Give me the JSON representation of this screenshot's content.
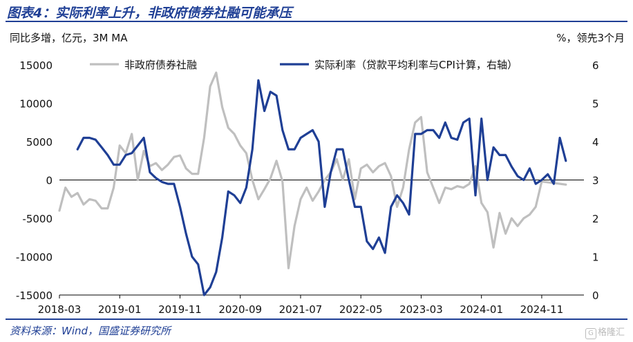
{
  "header": {
    "title": "图表4：实际利率上升，非政府债券社融可能承压",
    "left_note": "同比多增，亿元，3M MA",
    "right_note": "%，领先3个月"
  },
  "footer": {
    "source": "资料来源：Wind，国盛证券研究所",
    "watermark": "格隆汇"
  },
  "colors": {
    "brand": "#1F3F95",
    "series_gray": "#BFBFBF",
    "series_blue": "#1F3F95"
  },
  "chart_data": {
    "type": "line",
    "title": "实际利率上升，非政府债券社融可能承压",
    "x_start": "2018-03",
    "x_end": "2025-06",
    "x_ticks": [
      "2018-03",
      "2019-01",
      "2019-11",
      "2020-09",
      "2021-07",
      "2022-05",
      "2023-03",
      "2024-01",
      "2024-11"
    ],
    "left_axis": {
      "label": "同比多增，亿元，3M MA",
      "min": -15000,
      "max": 15000,
      "ticks": [
        "15000",
        "10000",
        "5000",
        "0",
        "-5000",
        "-10000",
        "-15000"
      ]
    },
    "right_axis": {
      "label": "%，领先3个月",
      "min": 0,
      "max": 6,
      "ticks": [
        "6",
        "5",
        "4",
        "3",
        "2",
        "1",
        "0"
      ]
    },
    "legend": [
      "非政府债券社融",
      "实际利率（贷款平均利率与CPI计算，右轴）"
    ],
    "series": [
      {
        "name": "非政府债券社融",
        "axis": "left",
        "start": "2018-03",
        "values": [
          -4000,
          -1000,
          -2200,
          -1700,
          -3200,
          -2500,
          -2700,
          -3700,
          -3700,
          -1000,
          4500,
          3500,
          6000,
          0,
          3800,
          1800,
          2200,
          1300,
          2000,
          3000,
          3200,
          1500,
          800,
          800,
          5500,
          12200,
          14000,
          9500,
          6800,
          6000,
          4500,
          3500,
          0,
          -2500,
          -1200,
          200,
          2500,
          -200,
          -11500,
          -6000,
          -2500,
          -1000,
          -2700,
          -1500,
          0,
          1000,
          2700,
          0,
          2700,
          -2500,
          1500,
          2000,
          1000,
          1800,
          2200,
          500,
          -3500,
          -1000,
          4000,
          7500,
          8200,
          1000,
          -1000,
          -3000,
          -1000,
          -1200,
          -800,
          -1000,
          -500,
          1800,
          -3000,
          -4200,
          -8800,
          -4300,
          -7000,
          -5000,
          -6000,
          -5000,
          -4500,
          -3500,
          -200,
          -300,
          -400,
          -500,
          -600
        ]
      },
      {
        "name": "实际利率（贷款平均利率与CPI计算，右轴）",
        "axis": "right",
        "start": "2018-06",
        "values": [
          3.8,
          4.1,
          4.1,
          4.05,
          3.85,
          3.65,
          3.4,
          3.4,
          3.65,
          3.7,
          3.9,
          4.1,
          3.2,
          3.05,
          2.95,
          2.9,
          2.9,
          2.3,
          1.6,
          1.0,
          0.8,
          0.0,
          0.2,
          0.6,
          1.5,
          2.7,
          2.6,
          2.4,
          2.8,
          3.8,
          5.6,
          4.8,
          5.3,
          5.2,
          4.3,
          3.8,
          3.8,
          4.1,
          4.2,
          4.3,
          4.0,
          2.3,
          3.2,
          3.8,
          3.8,
          3.0,
          2.3,
          2.3,
          1.4,
          1.2,
          1.5,
          1.1,
          2.3,
          2.6,
          2.4,
          2.1,
          4.2,
          4.2,
          4.3,
          4.3,
          4.1,
          4.5,
          4.1,
          4.05,
          4.5,
          4.6,
          2.6,
          4.6,
          3.0,
          3.85,
          3.65,
          3.65,
          3.35,
          3.1,
          3.0,
          3.3,
          2.9,
          3.0,
          3.15,
          2.9,
          4.1,
          3.5
        ]
      }
    ]
  }
}
